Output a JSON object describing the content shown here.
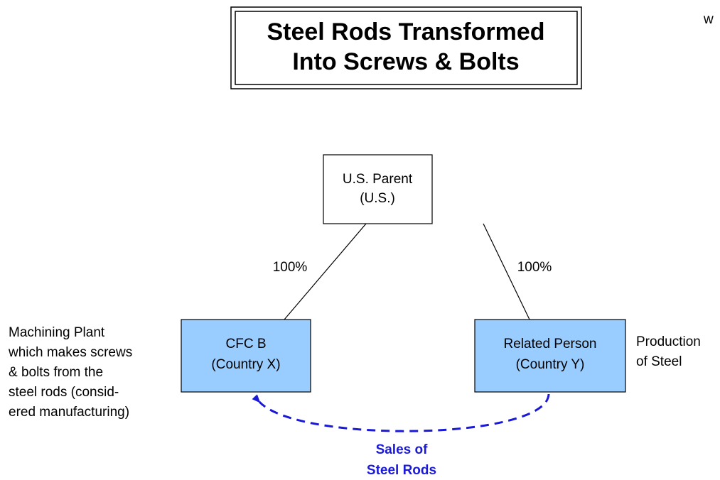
{
  "title": [
    "Steel Rods Transformed",
    "Into Screws & Bolts"
  ],
  "corner_text": "w",
  "nodes": [
    {
      "label": [
        "U.S. Parent",
        "(U.S.)"
      ]
    },
    {
      "label": [
        "CFC B",
        "(Country X)"
      ]
    },
    {
      "label": [
        "Related Person",
        "(Country Y)"
      ]
    }
  ],
  "edges": [
    {
      "label": "100%"
    },
    {
      "label": "100%"
    }
  ],
  "notes": [
    {
      "lines": [
        "Machining Plant",
        "which makes screws",
        "& bolts from the",
        "steel rods (consid-",
        "ered manufacturing)"
      ]
    },
    {
      "lines": [
        "Production",
        "of Steel"
      ]
    }
  ],
  "flow": {
    "label": [
      "Sales of",
      "Steel Rods"
    ]
  }
}
